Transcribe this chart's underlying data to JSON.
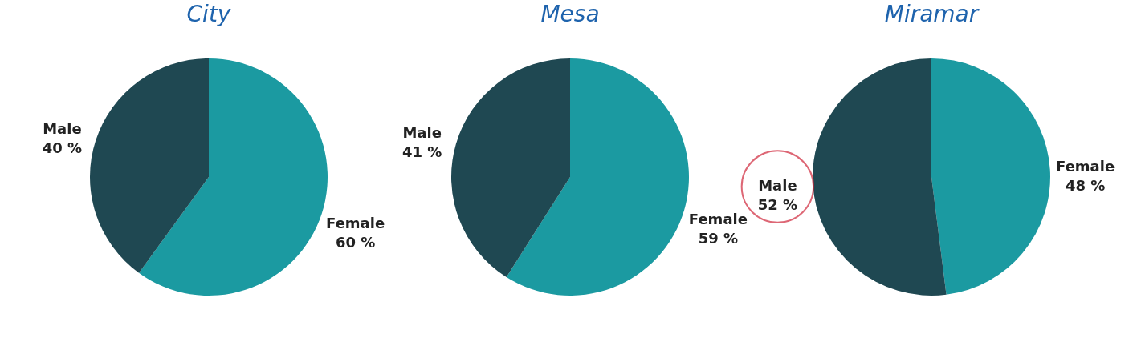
{
  "chart_data": [
    {
      "type": "pie",
      "title": "City",
      "categories": [
        "Female",
        "Male"
      ],
      "values": [
        60,
        40
      ],
      "colors": [
        "#1b9aa1",
        "#1f4852"
      ],
      "value_labels": [
        "60 %",
        "40 %"
      ]
    },
    {
      "type": "pie",
      "title": "Mesa",
      "categories": [
        "Female",
        "Male"
      ],
      "values": [
        59,
        41
      ],
      "colors": [
        "#1b9aa1",
        "#1f4852"
      ],
      "value_labels": [
        "59 %",
        "41 %"
      ]
    },
    {
      "type": "pie",
      "title": "Miramar",
      "categories": [
        "Female",
        "Male"
      ],
      "values": [
        48,
        52
      ],
      "colors": [
        "#1b9aa1",
        "#1f4852"
      ],
      "value_labels": [
        "48 %",
        "52 %"
      ]
    }
  ]
}
